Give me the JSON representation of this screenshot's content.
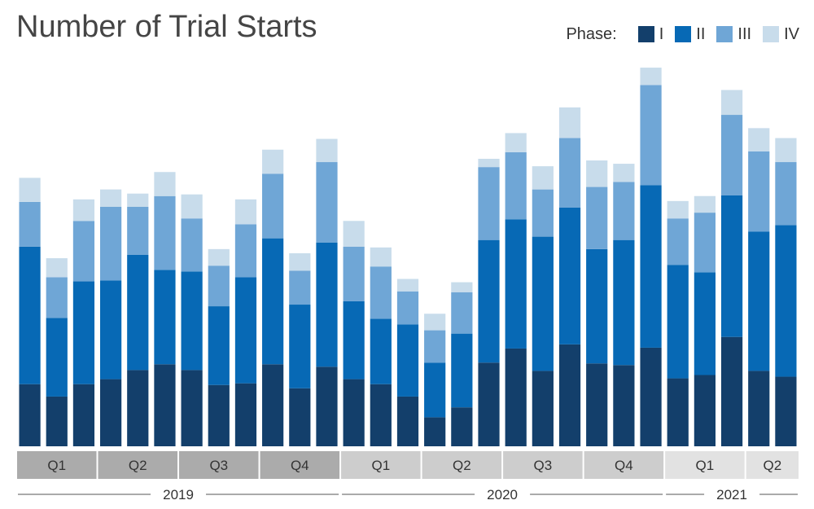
{
  "title": "Number of Trial Starts",
  "legend": {
    "lead": "Phase:",
    "items": [
      {
        "label": "I",
        "color": "#133F6B"
      },
      {
        "label": "II",
        "color": "#0769B5"
      },
      {
        "label": "III",
        "color": "#6FA6D6"
      },
      {
        "label": "IV",
        "color": "#C8DCEB"
      }
    ]
  },
  "chart_data": {
    "type": "bar",
    "stacked": true,
    "ylim": [
      0,
      460
    ],
    "grid": false,
    "legend_position": "top-right",
    "categories": [
      "2019 Q1 M1",
      "2019 Q1 M2",
      "2019 Q1 M3",
      "2019 Q2 M1",
      "2019 Q2 M2",
      "2019 Q2 M3",
      "2019 Q3 M1",
      "2019 Q3 M2",
      "2019 Q3 M3",
      "2019 Q4 M1",
      "2019 Q4 M2",
      "2019 Q4 M3",
      "2020 Q1 M1",
      "2020 Q1 M2",
      "2020 Q1 M3",
      "2020 Q2 M1",
      "2020 Q2 M2",
      "2020 Q2 M3",
      "2020 Q3 M1",
      "2020 Q3 M2",
      "2020 Q3 M3",
      "2020 Q4 M1",
      "2020 Q4 M2",
      "2020 Q4 M3",
      "2021 Q1 M1",
      "2021 Q1 M2",
      "2021 Q1 M3",
      "2021 Q2 M1",
      "2021 Q2 M2"
    ],
    "series": [
      {
        "name": "I",
        "color": "#133F6B",
        "values": [
          75,
          60,
          75,
          81,
          92,
          99,
          92,
          74,
          76,
          99,
          70,
          96,
          81,
          75,
          60,
          35,
          47,
          101,
          118,
          91,
          123,
          100,
          98,
          119,
          82,
          86,
          132,
          91,
          84
        ]
      },
      {
        "name": "II",
        "color": "#0769B5",
        "values": [
          166,
          95,
          124,
          119,
          139,
          114,
          119,
          95,
          128,
          152,
          101,
          150,
          94,
          79,
          87,
          66,
          89,
          148,
          156,
          162,
          165,
          138,
          151,
          196,
          137,
          124,
          171,
          168,
          183
        ]
      },
      {
        "name": "III",
        "color": "#6FA6D6",
        "values": [
          54,
          49,
          73,
          89,
          58,
          89,
          64,
          49,
          64,
          78,
          41,
          97,
          66,
          63,
          40,
          39,
          50,
          88,
          81,
          57,
          84,
          75,
          70,
          121,
          56,
          72,
          97,
          97,
          76
        ]
      },
      {
        "name": "IV",
        "color": "#C8DCEB",
        "values": [
          29,
          23,
          26,
          21,
          16,
          29,
          29,
          20,
          30,
          29,
          21,
          28,
          31,
          23,
          15,
          20,
          12,
          10,
          23,
          28,
          37,
          32,
          22,
          21,
          21,
          20,
          30,
          28,
          29
        ]
      }
    ],
    "quarters": [
      {
        "label": "Q1",
        "start": 0,
        "count": 3
      },
      {
        "label": "Q2",
        "start": 3,
        "count": 3
      },
      {
        "label": "Q3",
        "start": 6,
        "count": 3
      },
      {
        "label": "Q4",
        "start": 9,
        "count": 3
      },
      {
        "label": "Q1",
        "start": 12,
        "count": 3
      },
      {
        "label": "Q2",
        "start": 15,
        "count": 3
      },
      {
        "label": "Q3",
        "start": 18,
        "count": 3
      },
      {
        "label": "Q4",
        "start": 21,
        "count": 3
      },
      {
        "label": "Q1",
        "start": 24,
        "count": 3
      },
      {
        "label": "Q2",
        "start": 27,
        "count": 2
      }
    ],
    "years": [
      {
        "label": "2019",
        "start": 0,
        "count": 12
      },
      {
        "label": "2020",
        "start": 12,
        "count": 12
      },
      {
        "label": "2021",
        "start": 24,
        "count": 5
      }
    ],
    "band_colors": {
      "2019": "#ABABAB",
      "2020": "#CDCDCD",
      "2021": "#E2E2E2"
    }
  }
}
